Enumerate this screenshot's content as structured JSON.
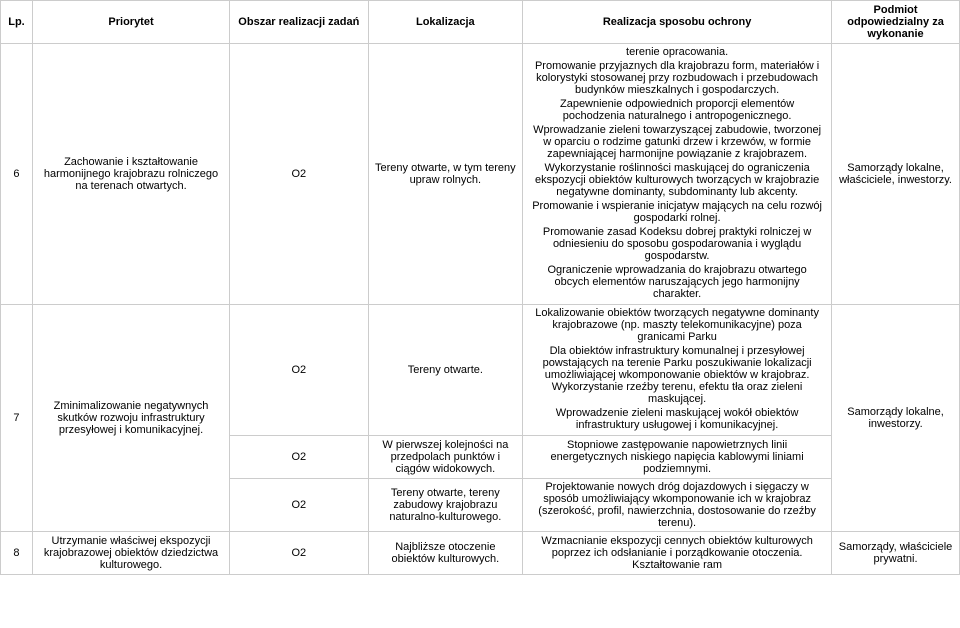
{
  "headers": {
    "lp": "Lp.",
    "priorytet": "Priorytet",
    "obszar": "Obszar realizacji zadań",
    "lokalizacja": "Lokalizacja",
    "realizacja": "Realizacja sposobu ochrony",
    "podmiot": "Podmiot odpowiedzialny za wykonanie"
  },
  "row6": {
    "lp": "6",
    "priorytet": "Zachowanie i kształtowanie harmonijnego krajobrazu rolniczego na terenach otwartych.",
    "obszar": "O2",
    "lokalizacja": "Tereny otwarte, w tym tereny upraw rolnych.",
    "realizacja_parts": [
      "terenie opracowania.",
      "Promowanie przyjaznych dla krajobrazu form, materiałów i kolorystyki stosowanej przy rozbudowach i przebudowach budynków mieszkalnych i gospodarczych.",
      "Zapewnienie odpowiednich proporcji elementów pochodzenia naturalnego i antropogenicznego.",
      "Wprowadzanie zieleni towarzyszącej zabudowie, tworzonej w oparciu o rodzime gatunki drzew i krzewów, w formie zapewniającej harmonijne powiązanie z krajobrazem.",
      "Wykorzystanie roślinności maskującej do ograniczenia ekspozycji obiektów kulturowych tworzących w krajobrazie negatywne dominanty, subdominanty lub akcenty.",
      "Promowanie i wspieranie inicjatyw mających na celu rozwój gospodarki rolnej.",
      "Promowanie zasad Kodeksu dobrej praktyki rolniczej w odniesieniu do sposobu gospodarowania i wyglądu gospodarstw.",
      "Ograniczenie wprowadzania do krajobrazu otwartego obcych elementów naruszających jego harmonijny charakter."
    ],
    "podmiot": "Samorządy lokalne, właściciele, inwestorzy."
  },
  "row7": {
    "lp": "7",
    "priorytet": "Zminimalizowanie negatywnych skutków rozwoju infrastruktury przesyłowej i komunikacyjnej.",
    "podmiot": "Samorządy lokalne, inwestorzy.",
    "sub1": {
      "obszar": "O2",
      "lokalizacja": "Tereny otwarte.",
      "realizacja_parts": [
        "Lokalizowanie obiektów tworzących negatywne dominanty krajobrazowe (np. maszty telekomunikacyjne) poza granicami Parku",
        "Dla obiektów infrastruktury komunalnej i przesyłowej powstających na terenie Parku poszukiwanie lokalizacji umożliwiającej wkomponowanie obiektów w krajobraz. Wykorzystanie rzeźby terenu, efektu tła oraz zieleni maskującej.",
        "Wprowadzenie zieleni maskującej wokół obiektów infrastruktury usługowej i komunikacyjnej."
      ]
    },
    "sub2": {
      "obszar": "O2",
      "lokalizacja": "W pierwszej kolejności na przedpolach punktów i ciągów widokowych.",
      "realizacja": "Stopniowe zastępowanie napowietrznych linii energetycznych niskiego napięcia kablowymi liniami podziemnymi."
    },
    "sub3": {
      "obszar": "O2",
      "lokalizacja": "Tereny otwarte, tereny zabudowy krajobrazu naturalno-kulturowego.",
      "realizacja": "Projektowanie nowych dróg dojazdowych i sięgaczy w sposób umożliwiający wkomponowanie ich w krajobraz (szerokość, profil, nawierzchnia, dostosowanie do rzeźby terenu)."
    }
  },
  "row8": {
    "lp": "8",
    "priorytet": "Utrzymanie właściwej ekspozycji krajobrazowej obiektów dziedzictwa kulturowego.",
    "obszar": "O2",
    "lokalizacja": "Najbliższe otoczenie obiektów kulturowych.",
    "realizacja": "Wzmacnianie ekspozycji cennych obiektów kulturowych poprzez ich odsłanianie i porządkowanie otoczenia. Kształtowanie ram",
    "podmiot": "Samorządy, właściciele prywatni."
  }
}
